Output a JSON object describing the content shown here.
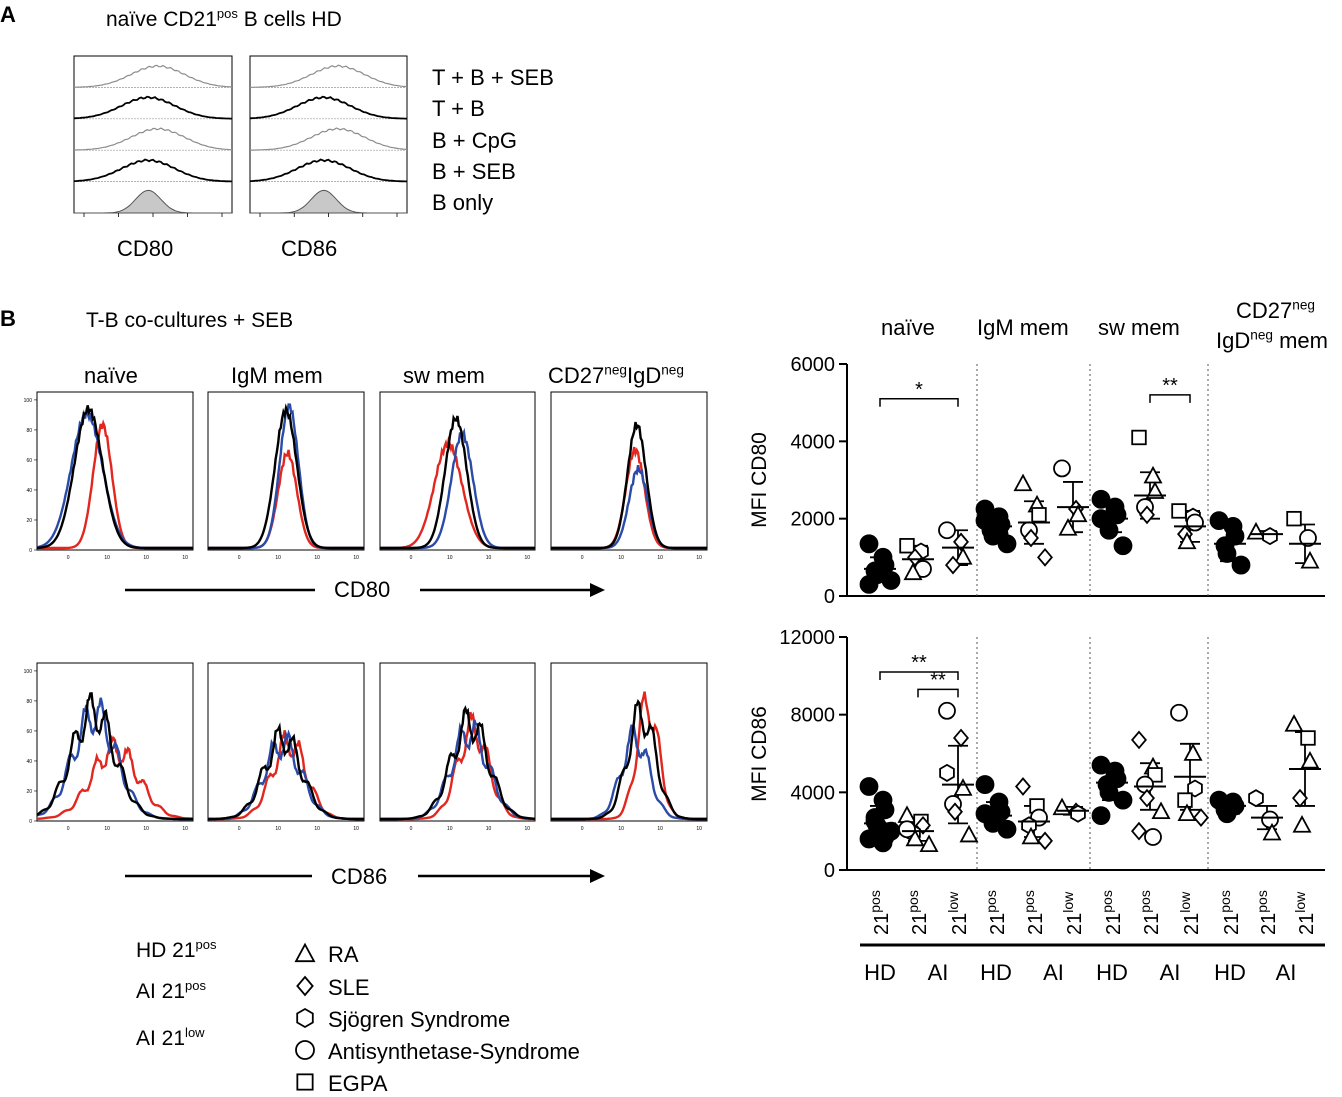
{
  "panelA": {
    "letter": "A",
    "title_pre": "naïve CD21",
    "title_sup": "pos",
    "title_post": " B cells HD",
    "markers": [
      "CD80",
      "CD86"
    ],
    "conditions": [
      "T + B + SEB",
      "T + B",
      "B + CpG",
      "B + SEB",
      "B only"
    ],
    "colors": {
      "gray": "#8c8c8c",
      "black": "#000000",
      "fill": "#c8c8c8"
    }
  },
  "panelB": {
    "letter": "B",
    "title": "T-B co-cultures + SEB",
    "subsets": [
      {
        "pre": "naïve"
      },
      {
        "pre": "IgM mem"
      },
      {
        "pre": "sw mem"
      },
      {
        "pre": "CD27",
        "sup1": "neg",
        "mid": "IgD",
        "sup2": "neg"
      }
    ],
    "hist_yticks": [
      "0",
      "20",
      "40",
      "60",
      "80",
      "100"
    ],
    "hist_xticks": [
      "0",
      "10",
      "10",
      "10"
    ],
    "axis_labels": [
      "CD80",
      "CD86"
    ],
    "colors": {
      "HD21pos": "#000000",
      "AI21pos": "#2a4ba7",
      "AI21low": "#e2271f"
    }
  },
  "legend": {
    "lines": [
      {
        "pre": "HD 21",
        "sup": "pos",
        "color": "#000000"
      },
      {
        "pre": "AI 21",
        "sup": "pos",
        "color": "#2a4ba7"
      },
      {
        "pre": "AI 21",
        "sup": "low",
        "color": "#e2271f"
      }
    ],
    "symbols": [
      {
        "shape": "triangle",
        "label": "RA"
      },
      {
        "shape": "diamond",
        "label": "SLE"
      },
      {
        "shape": "hexagon",
        "label": "Sjögren Syndrome"
      },
      {
        "shape": "circle",
        "label": "Antisynthetase-Syndrome"
      },
      {
        "shape": "square",
        "label": "EGPA"
      }
    ]
  },
  "scatter": {
    "headers": [
      {
        "pre": "naïve"
      },
      {
        "pre": "IgM mem"
      },
      {
        "pre": "sw mem"
      },
      {
        "line1": "CD27",
        "sup1": "neg",
        "line2": "IgD",
        "sup2": "neg",
        "line2b": " mem"
      }
    ],
    "x_groups": [
      "HD",
      "AI",
      "HD",
      "AI",
      "HD",
      "AI",
      "HD",
      "AI"
    ],
    "x_ticks": [
      {
        "base": "21",
        "sup": "pos"
      },
      {
        "base": "21",
        "sup": "pos"
      },
      {
        "base": "21",
        "sup": "low"
      },
      {
        "base": "21",
        "sup": "pos"
      },
      {
        "base": "21",
        "sup": "pos"
      },
      {
        "base": "21",
        "sup": "low"
      },
      {
        "base": "21",
        "sup": "pos"
      },
      {
        "base": "21",
        "sup": "pos"
      },
      {
        "base": "21",
        "sup": "low"
      },
      {
        "base": "21",
        "sup": "pos"
      },
      {
        "base": "21",
        "sup": "pos"
      },
      {
        "base": "21",
        "sup": "low"
      }
    ]
  },
  "chart_data": [
    {
      "type": "scatter",
      "title": "MFI CD80",
      "ylabel": "MFI CD80",
      "ylim": [
        0,
        6000
      ],
      "yticks": [
        0,
        2000,
        4000,
        6000
      ],
      "ytick_labels": [
        "0",
        "2000",
        "4000",
        "6000"
      ],
      "significance": [
        {
          "from": 0,
          "to": 2,
          "label": "*",
          "y": 5100
        },
        {
          "from": 7,
          "to": 8,
          "label": "**",
          "y": 5200
        }
      ],
      "groups": [
        {
          "mean": 700,
          "sd": 300,
          "points": [
            {
              "v": 1350,
              "s": "dot"
            },
            {
              "v": 1000,
              "s": "dot"
            },
            {
              "v": 800,
              "s": "dot"
            },
            {
              "v": 650,
              "s": "dot"
            },
            {
              "v": 550,
              "s": "dot"
            },
            {
              "v": 400,
              "s": "dot"
            },
            {
              "v": 300,
              "s": "dot"
            },
            {
              "v": 750,
              "s": "dot"
            }
          ]
        },
        {
          "mean": 950,
          "sd": 350,
          "points": [
            {
              "v": 1300,
              "s": "square"
            },
            {
              "v": 1150,
              "s": "hexagon"
            },
            {
              "v": 700,
              "s": "circle"
            },
            {
              "v": 600,
              "s": "triangle"
            },
            {
              "v": 1000,
              "s": "diamond"
            }
          ]
        },
        {
          "mean": 1250,
          "sd": 450,
          "points": [
            {
              "v": 1700,
              "s": "circle"
            },
            {
              "v": 1400,
              "s": "diamond"
            },
            {
              "v": 1000,
              "s": "triangle"
            },
            {
              "v": 800,
              "s": "diamond"
            }
          ]
        },
        {
          "mean": 1800,
          "sd": 400,
          "points": [
            {
              "v": 2250,
              "s": "dot"
            },
            {
              "v": 2050,
              "s": "dot"
            },
            {
              "v": 1850,
              "s": "dot"
            },
            {
              "v": 1700,
              "s": "dot"
            },
            {
              "v": 1550,
              "s": "dot"
            },
            {
              "v": 1350,
              "s": "dot"
            },
            {
              "v": 1950,
              "s": "dot"
            },
            {
              "v": 1600,
              "s": "dot"
            }
          ]
        },
        {
          "mean": 1900,
          "sd": 550,
          "points": [
            {
              "v": 2900,
              "s": "triangle"
            },
            {
              "v": 2350,
              "s": "triangle"
            },
            {
              "v": 2100,
              "s": "square"
            },
            {
              "v": 1700,
              "s": "circle"
            },
            {
              "v": 1500,
              "s": "diamond"
            },
            {
              "v": 1000,
              "s": "diamond"
            }
          ]
        },
        {
          "mean": 2300,
          "sd": 650,
          "points": [
            {
              "v": 3300,
              "s": "circle"
            },
            {
              "v": 2250,
              "s": "diamond"
            },
            {
              "v": 2100,
              "s": "triangle"
            },
            {
              "v": 1750,
              "s": "triangle"
            }
          ]
        },
        {
          "mean": 2000,
          "sd": 350,
          "points": [
            {
              "v": 2500,
              "s": "dot"
            },
            {
              "v": 2300,
              "s": "dot"
            },
            {
              "v": 2100,
              "s": "dot"
            },
            {
              "v": 1900,
              "s": "dot"
            },
            {
              "v": 1700,
              "s": "dot"
            },
            {
              "v": 1300,
              "s": "dot"
            },
            {
              "v": 2000,
              "s": "dot"
            },
            {
              "v": 2200,
              "s": "dot"
            }
          ]
        },
        {
          "mean": 2600,
          "sd": 600,
          "points": [
            {
              "v": 4100,
              "s": "square"
            },
            {
              "v": 3100,
              "s": "triangle"
            },
            {
              "v": 2700,
              "s": "triangle"
            },
            {
              "v": 2300,
              "s": "circle"
            },
            {
              "v": 2100,
              "s": "diamond"
            }
          ]
        },
        {
          "mean": 1800,
          "sd": 400,
          "points": [
            {
              "v": 2200,
              "s": "square"
            },
            {
              "v": 2050,
              "s": "hexagon"
            },
            {
              "v": 1900,
              "s": "circle"
            },
            {
              "v": 1600,
              "s": "diamond"
            },
            {
              "v": 1400,
              "s": "triangle"
            }
          ]
        },
        {
          "mean": 1350,
          "sd": 450,
          "points": [
            {
              "v": 1950,
              "s": "dot"
            },
            {
              "v": 1800,
              "s": "dot"
            },
            {
              "v": 1550,
              "s": "dot"
            },
            {
              "v": 1300,
              "s": "dot"
            },
            {
              "v": 1100,
              "s": "dot"
            },
            {
              "v": 800,
              "s": "dot"
            }
          ]
        },
        {
          "mean": 1600,
          "sd": 80,
          "points": [
            {
              "v": 1650,
              "s": "triangle"
            },
            {
              "v": 1550,
              "s": "hexagon"
            }
          ]
        },
        {
          "mean": 1350,
          "sd": 500,
          "points": [
            {
              "v": 2000,
              "s": "square"
            },
            {
              "v": 1500,
              "s": "circle"
            },
            {
              "v": 900,
              "s": "triangle"
            }
          ]
        }
      ]
    },
    {
      "type": "scatter",
      "title": "MFI CD86",
      "ylabel": "MFI CD86",
      "ylim": [
        0,
        12000
      ],
      "yticks": [
        0,
        4000,
        8000,
        12000
      ],
      "ytick_labels": [
        "0",
        "4000",
        "8000",
        "12000"
      ],
      "significance": [
        {
          "from": 0,
          "to": 2,
          "label": "**",
          "y": 10200
        },
        {
          "from": 1,
          "to": 2,
          "label": "**",
          "y": 9300
        }
      ],
      "groups": [
        {
          "mean": 2400,
          "sd": 900,
          "points": [
            {
              "v": 4300,
              "s": "dot"
            },
            {
              "v": 3600,
              "s": "dot"
            },
            {
              "v": 3100,
              "s": "dot"
            },
            {
              "v": 2700,
              "s": "dot"
            },
            {
              "v": 2300,
              "s": "dot"
            },
            {
              "v": 2000,
              "s": "dot"
            },
            {
              "v": 1600,
              "s": "dot"
            },
            {
              "v": 1400,
              "s": "dot"
            },
            {
              "v": 1700,
              "s": "dot"
            },
            {
              "v": 2500,
              "s": "dot"
            }
          ]
        },
        {
          "mean": 2000,
          "sd": 500,
          "points": [
            {
              "v": 2800,
              "s": "triangle"
            },
            {
              "v": 2500,
              "s": "square"
            },
            {
              "v": 2300,
              "s": "diamond"
            },
            {
              "v": 1900,
              "s": "hexagon"
            },
            {
              "v": 1600,
              "s": "triangle"
            },
            {
              "v": 1300,
              "s": "triangle"
            },
            {
              "v": 2100,
              "s": "circle"
            }
          ]
        },
        {
          "mean": 4400,
          "sd": 2000,
          "points": [
            {
              "v": 8200,
              "s": "circle"
            },
            {
              "v": 6800,
              "s": "diamond"
            },
            {
              "v": 4200,
              "s": "triangle"
            },
            {
              "v": 3400,
              "s": "circle"
            },
            {
              "v": 3000,
              "s": "diamond"
            },
            {
              "v": 1800,
              "s": "triangle"
            },
            {
              "v": 5000,
              "s": "hexagon"
            }
          ]
        },
        {
          "mean": 2800,
          "sd": 700,
          "points": [
            {
              "v": 4400,
              "s": "dot"
            },
            {
              "v": 3500,
              "s": "dot"
            },
            {
              "v": 3000,
              "s": "dot"
            },
            {
              "v": 2700,
              "s": "dot"
            },
            {
              "v": 2400,
              "s": "dot"
            },
            {
              "v": 2100,
              "s": "dot"
            },
            {
              "v": 2900,
              "s": "dot"
            }
          ]
        },
        {
          "mean": 2500,
          "sd": 800,
          "points": [
            {
              "v": 4300,
              "s": "diamond"
            },
            {
              "v": 3300,
              "s": "square"
            },
            {
              "v": 2700,
              "s": "circle"
            },
            {
              "v": 2300,
              "s": "hexagon"
            },
            {
              "v": 1700,
              "s": "triangle"
            },
            {
              "v": 1500,
              "s": "diamond"
            }
          ]
        },
        {
          "mean": 3050,
          "sd": 200,
          "points": [
            {
              "v": 3200,
              "s": "triangle"
            },
            {
              "v": 3000,
              "s": "diamond"
            },
            {
              "v": 2900,
              "s": "hexagon"
            }
          ]
        },
        {
          "mean": 4500,
          "sd": 900,
          "points": [
            {
              "v": 5400,
              "s": "dot"
            },
            {
              "v": 5100,
              "s": "dot"
            },
            {
              "v": 4700,
              "s": "dot"
            },
            {
              "v": 4400,
              "s": "dot"
            },
            {
              "v": 4000,
              "s": "dot"
            },
            {
              "v": 3600,
              "s": "dot"
            },
            {
              "v": 2800,
              "s": "dot"
            },
            {
              "v": 4900,
              "s": "dot"
            }
          ]
        },
        {
          "mean": 4300,
          "sd": 1200,
          "points": [
            {
              "v": 6700,
              "s": "diamond"
            },
            {
              "v": 5300,
              "s": "triangle"
            },
            {
              "v": 4900,
              "s": "square"
            },
            {
              "v": 4400,
              "s": "circle"
            },
            {
              "v": 3700,
              "s": "diamond"
            },
            {
              "v": 3000,
              "s": "triangle"
            },
            {
              "v": 2000,
              "s": "diamond"
            },
            {
              "v": 1700,
              "s": "circle"
            }
          ]
        },
        {
          "mean": 4800,
          "sd": 1700,
          "points": [
            {
              "v": 8100,
              "s": "circle"
            },
            {
              "v": 6000,
              "s": "triangle"
            },
            {
              "v": 4200,
              "s": "hexagon"
            },
            {
              "v": 3600,
              "s": "square"
            },
            {
              "v": 2900,
              "s": "triangle"
            },
            {
              "v": 2700,
              "s": "diamond"
            }
          ]
        },
        {
          "mean": 3300,
          "sd": 400,
          "points": [
            {
              "v": 3600,
              "s": "dot"
            },
            {
              "v": 3500,
              "s": "dot"
            },
            {
              "v": 3300,
              "s": "dot"
            },
            {
              "v": 3100,
              "s": "dot"
            },
            {
              "v": 2900,
              "s": "dot"
            }
          ]
        },
        {
          "mean": 2700,
          "sd": 600,
          "points": [
            {
              "v": 3700,
              "s": "hexagon"
            },
            {
              "v": 2600,
              "s": "circle"
            },
            {
              "v": 1900,
              "s": "triangle"
            }
          ]
        },
        {
          "mean": 5200,
          "sd": 1900,
          "points": [
            {
              "v": 7500,
              "s": "triangle"
            },
            {
              "v": 6800,
              "s": "square"
            },
            {
              "v": 5600,
              "s": "triangle"
            },
            {
              "v": 3700,
              "s": "diamond"
            },
            {
              "v": 2300,
              "s": "triangle"
            }
          ]
        }
      ]
    }
  ]
}
